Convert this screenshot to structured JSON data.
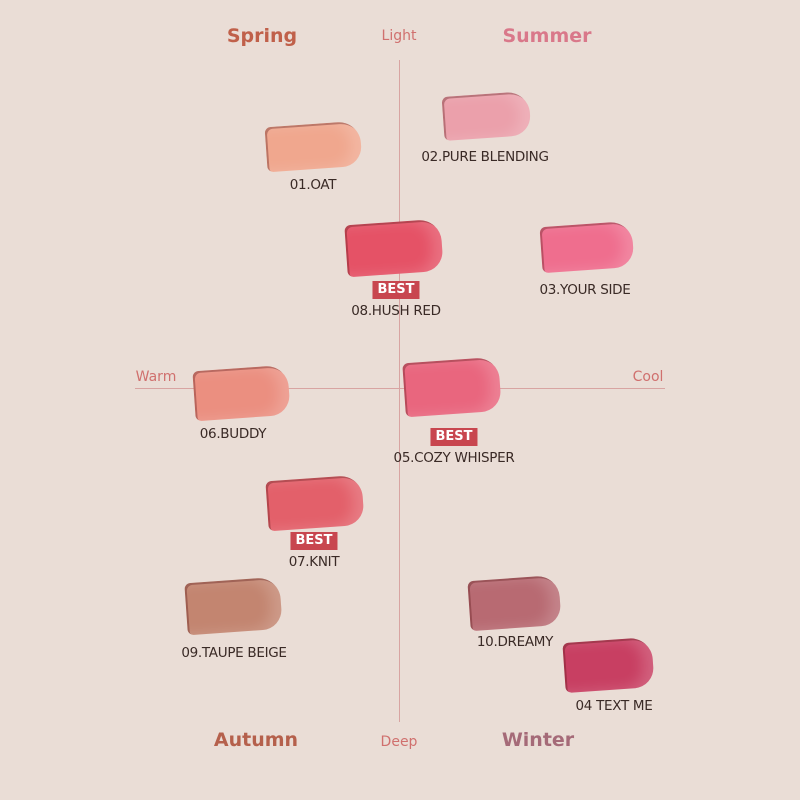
{
  "axes": {
    "top": "Light",
    "bottom": "Deep",
    "left": "Warm",
    "right": "Cool",
    "color": "#d8a4a2"
  },
  "seasons": [
    {
      "name": "Spring",
      "color": "#c0604a"
    },
    {
      "name": "Summer",
      "color": "#d9788a"
    },
    {
      "name": "Autumn",
      "color": "#b5604c"
    },
    {
      "name": "Winter",
      "color": "#a56a78"
    }
  ],
  "best_label": "BEST",
  "shades": [
    {
      "name": "01.OAT",
      "color": "#f0a78e",
      "best": false
    },
    {
      "name": "02.PURE BLENDING",
      "color": "#eba0ab",
      "best": false
    },
    {
      "name": "08.HUSH RED",
      "color": "#e55266",
      "best": true
    },
    {
      "name": "03.YOUR SIDE",
      "color": "#ef6e8e",
      "best": false
    },
    {
      "name": "06.BUDDY",
      "color": "#eb8f80",
      "best": false
    },
    {
      "name": "05.COZY WHISPER",
      "color": "#e9667e",
      "best": true
    },
    {
      "name": "07.KNIT",
      "color": "#e3606a",
      "best": true
    },
    {
      "name": "09.TAUPE BEIGE",
      "color": "#c38570",
      "best": false
    },
    {
      "name": "10.DREAMY",
      "color": "#b86a72",
      "best": false
    },
    {
      "name": "04 TEXT ME",
      "color": "#c83f62",
      "best": false
    }
  ]
}
